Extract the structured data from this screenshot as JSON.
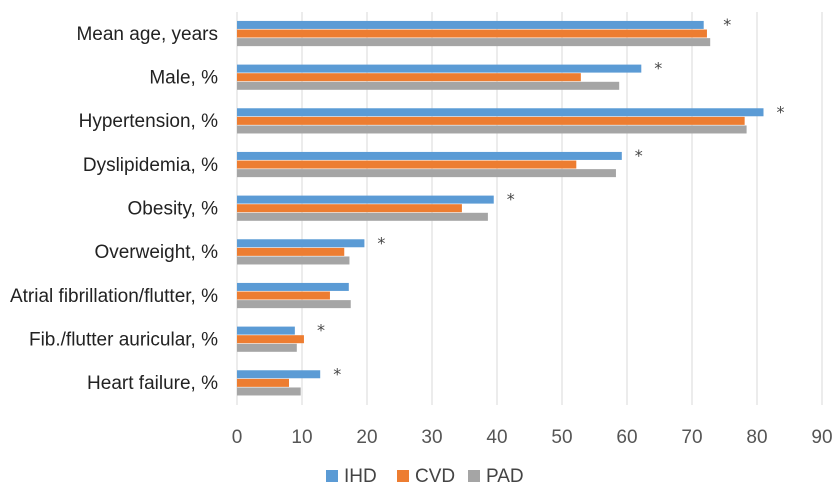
{
  "chart_data": {
    "type": "bar",
    "orientation": "horizontal",
    "categories": [
      "Mean age, years",
      "Male, %",
      "Hypertension, %",
      "Dyslipidemia, %",
      "Obesity, %",
      "Overweight, %",
      "Atrial fibrillation/flutter, %",
      "Fib./flutter auricular, %",
      "Heart failure, %"
    ],
    "series": [
      {
        "name": "IHD",
        "color": "#5b9bd5",
        "values": [
          71.8,
          62.2,
          81.0,
          59.2,
          39.5,
          19.6,
          17.2,
          8.9,
          12.8
        ]
      },
      {
        "name": "CVD",
        "color": "#ed7d31",
        "values": [
          72.3,
          52.9,
          78.1,
          52.2,
          34.6,
          16.5,
          14.3,
          10.3,
          8.0
        ]
      },
      {
        "name": "PAD",
        "color": "#a5a5a5",
        "values": [
          72.8,
          58.8,
          78.4,
          58.3,
          38.6,
          17.3,
          17.5,
          9.2,
          9.8
        ]
      }
    ],
    "significance_markers": [
      "*",
      "*",
      "*",
      "*",
      "*",
      "*",
      "",
      "*",
      "*"
    ],
    "xlim": [
      0,
      90
    ],
    "x_ticks": [
      "0",
      "10",
      "20",
      "30",
      "40",
      "50",
      "60",
      "70",
      "80",
      "90"
    ],
    "grid": "vertical",
    "legend_position": "bottom",
    "title": "",
    "xlabel": "",
    "ylabel": ""
  }
}
